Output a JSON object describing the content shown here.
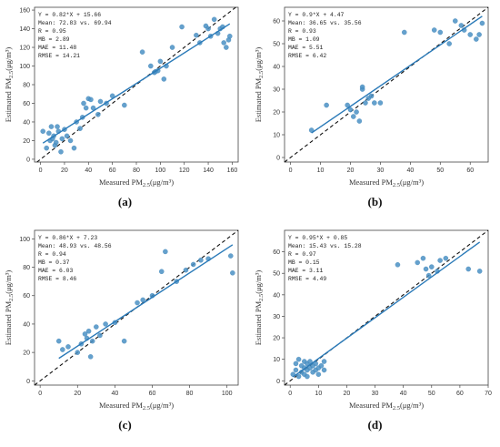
{
  "colors": {
    "point": "#4a90c4",
    "point_edge": "#3a7fb4",
    "fit": "#2a7ab8",
    "identity": "#111111",
    "frame": "#444444"
  },
  "chart_data": [
    {
      "type": "scatter",
      "panel_label": "(a)",
      "xlabel": "Measured PM2.5(μg/m³)",
      "ylabel": "Estimated PM2.5(μg/m³)",
      "xlim": [
        -5,
        165
      ],
      "ylim": [
        -3,
        163
      ],
      "xticks": [
        0,
        20,
        40,
        60,
        80,
        100,
        120,
        140,
        160
      ],
      "yticks": [
        0,
        20,
        40,
        60,
        80,
        100,
        120,
        140,
        160
      ],
      "stats": [
        "Y = 0.82*X + 15.66",
        "Mean:  72.83  vs.  69.94",
        "R = 0.95",
        "MB = 2.89",
        "MAE = 11.48",
        "RMSE = 14.21"
      ],
      "fit": {
        "slope": 0.82,
        "intercept": 15.66
      },
      "x": [
        2,
        5,
        7,
        8,
        9,
        10,
        11,
        12,
        13,
        14,
        15,
        17,
        18,
        20,
        22,
        25,
        28,
        30,
        33,
        35,
        36,
        38,
        40,
        42,
        44,
        48,
        50,
        55,
        60,
        70,
        85,
        92,
        95,
        96,
        98,
        100,
        103,
        105,
        110,
        118,
        130,
        133,
        138,
        140,
        142,
        145,
        148,
        150,
        152,
        153,
        155,
        157,
        158
      ],
      "y": [
        30,
        12,
        28,
        20,
        35,
        22,
        25,
        15,
        18,
        35,
        30,
        8,
        22,
        32,
        25,
        20,
        12,
        40,
        33,
        45,
        60,
        55,
        65,
        64,
        55,
        48,
        62,
        60,
        68,
        58,
        115,
        100,
        93,
        94,
        95,
        105,
        86,
        100,
        120,
        142,
        133,
        125,
        143,
        140,
        132,
        150,
        135,
        140,
        142,
        125,
        120,
        128,
        132
      ]
    },
    {
      "type": "scatter",
      "panel_label": "(b)",
      "xlabel": "Measured PM2.5(μg/m³)",
      "ylabel": "Estimated PM2.5(μg/m³)",
      "xlim": [
        -2,
        66
      ],
      "ylim": [
        -2,
        66
      ],
      "xticks": [
        0,
        10,
        20,
        30,
        40,
        50,
        60
      ],
      "yticks": [
        0,
        10,
        20,
        30,
        40,
        50,
        60
      ],
      "stats": [
        "Y = 0.9*X + 4.47",
        "Mean:  36.65  vs.  35.56",
        "R = 0.93",
        "MB = 1.09",
        "MAE = 5.51",
        "RMSE = 6.42"
      ],
      "fit": {
        "slope": 0.9,
        "intercept": 4.47
      },
      "x": [
        7,
        12,
        19,
        20,
        21,
        22,
        23,
        24,
        24,
        25,
        26,
        27,
        28,
        30,
        38,
        48,
        50,
        53,
        55,
        57,
        58,
        60,
        62,
        63,
        64
      ],
      "y": [
        12,
        23,
        23,
        21,
        18,
        20,
        16,
        30,
        31,
        24,
        26,
        27,
        24,
        24,
        55,
        56,
        55,
        50,
        60,
        58,
        56,
        54,
        52,
        54,
        59
      ]
    },
    {
      "type": "scatter",
      "panel_label": "(c)",
      "xlabel": "Measured PM2.5(μg/m³)",
      "ylabel": "Estimated PM2.5(μg/m³)",
      "xlim": [
        -3,
        106
      ],
      "ylim": [
        -3,
        106
      ],
      "xticks": [
        0,
        20,
        40,
        60,
        80,
        100
      ],
      "yticks": [
        0,
        20,
        40,
        60,
        80,
        100
      ],
      "stats": [
        "Y = 0.86*X + 7.23",
        "Mean:  48.93  vs.  48.56",
        "R = 0.94",
        "MB = 0.37",
        "MAE = 6.03",
        "RMSE = 8.46"
      ],
      "fit": {
        "slope": 0.86,
        "intercept": 7.23
      },
      "x": [
        10,
        12,
        15,
        20,
        22,
        24,
        25,
        26,
        27,
        28,
        30,
        32,
        35,
        40,
        45,
        52,
        55,
        60,
        65,
        67,
        73,
        78,
        82,
        86,
        90,
        102,
        103
      ],
      "y": [
        28,
        22,
        24,
        20,
        26,
        33,
        30,
        35,
        17,
        28,
        38,
        32,
        40,
        41,
        28,
        55,
        57,
        60,
        77,
        91,
        70,
        78,
        82,
        85,
        86,
        88,
        76
      ],
      "note_x_unused": null
    },
    {
      "type": "scatter",
      "panel_label": "(d)",
      "xlabel": "Measured PM2.5(μg/m³)",
      "ylabel": "Estimated PM2.5(μg/m³)",
      "xlim": [
        -2,
        70
      ],
      "ylim": [
        -2,
        70
      ],
      "xticks": [
        0,
        10,
        20,
        30,
        40,
        50,
        60,
        70
      ],
      "yticks": [
        0,
        10,
        20,
        30,
        40,
        50,
        60
      ],
      "stats": [
        "Y = 0.95*X + 0.85",
        "Mean:  15.43  vs.  15.28",
        "R = 0.97",
        "MB = 0.15",
        "MAE = 3.11",
        "RMSE = 4.49"
      ],
      "fit": {
        "slope": 0.95,
        "intercept": 0.85
      },
      "x": [
        1,
        2,
        2,
        3,
        3,
        4,
        4,
        5,
        5,
        5,
        6,
        6,
        6,
        7,
        7,
        8,
        8,
        9,
        9,
        10,
        10,
        11,
        12,
        12,
        38,
        45,
        47,
        48,
        49,
        50,
        52,
        53,
        55,
        63,
        67
      ],
      "y": [
        3,
        5,
        8,
        2,
        10,
        4,
        7,
        6,
        9,
        3,
        5,
        8,
        2,
        6,
        9,
        4,
        7,
        5,
        8,
        6,
        3,
        7,
        5,
        9,
        54,
        55,
        57,
        52,
        49,
        53,
        51,
        56,
        57,
        52,
        51
      ]
    }
  ]
}
